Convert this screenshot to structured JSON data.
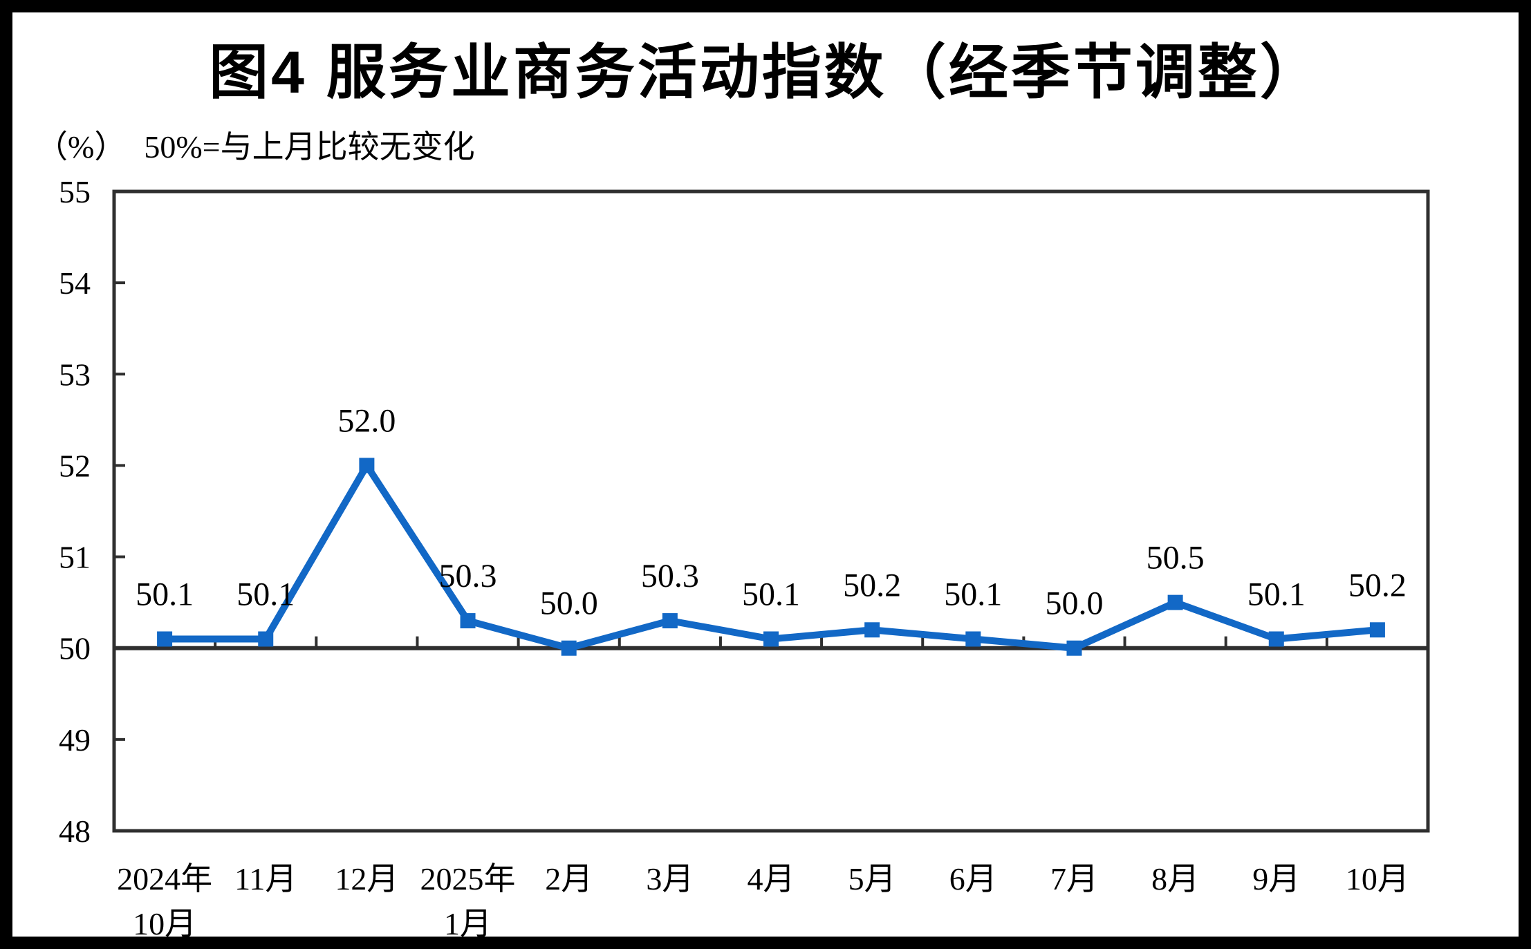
{
  "chart_data": {
    "type": "line",
    "title": "图4 服务业商务活动指数（经季节调整）",
    "unit_label": "（%）",
    "axis_note": "50%=与上月比较无变化",
    "categories": [
      [
        "2024年",
        "10月"
      ],
      [
        "11月"
      ],
      [
        "12月"
      ],
      [
        "2025年",
        "1月"
      ],
      [
        "2月"
      ],
      [
        "3月"
      ],
      [
        "4月"
      ],
      [
        "5月"
      ],
      [
        "6月"
      ],
      [
        "7月"
      ],
      [
        "8月"
      ],
      [
        "9月"
      ],
      [
        "10月"
      ]
    ],
    "series": [
      {
        "name": "服务业商务活动指数",
        "values": [
          50.1,
          50.1,
          52.0,
          50.3,
          50.0,
          50.3,
          50.1,
          50.2,
          50.1,
          50.0,
          50.5,
          50.1,
          50.2
        ],
        "data_labels": [
          "50.1",
          "50.1",
          "52.0",
          "50.3",
          "50.0",
          "50.3",
          "50.1",
          "50.2",
          "50.1",
          "50.0",
          "50.5",
          "50.1",
          "50.2"
        ]
      }
    ],
    "ylim": [
      48,
      55
    ],
    "yticks": [
      48,
      49,
      50,
      51,
      52,
      53,
      54,
      55
    ],
    "axis_cross_value": 50,
    "grid": false,
    "legend": false,
    "marker": "square",
    "colors": {
      "line": "#1268C6",
      "axis": "#2F2F2F",
      "text": "#000000",
      "background": "#FFFFFF",
      "frame": "#000000"
    }
  }
}
